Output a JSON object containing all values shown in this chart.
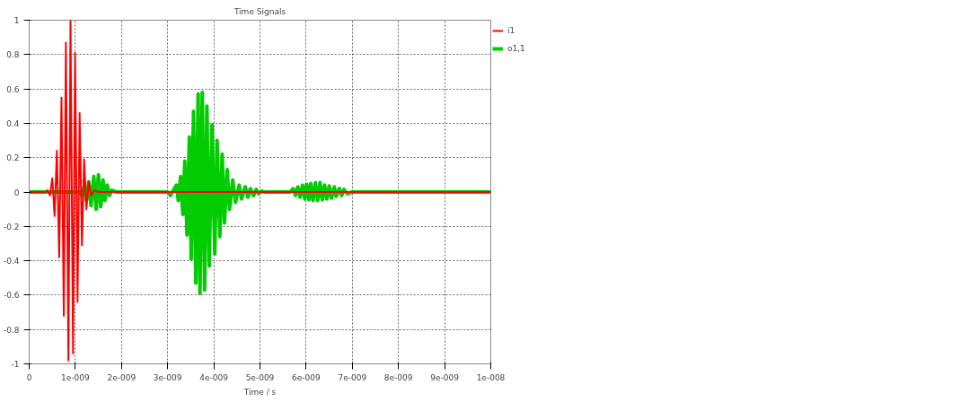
{
  "chart_data": {
    "type": "line",
    "title": "Time Signals",
    "xlabel": "Time / s",
    "xlim": [
      0,
      1e-08
    ],
    "xticks": [
      0,
      {
        "value": 1e-09,
        "label": "1e-009"
      },
      {
        "value": 2e-09,
        "label": "2e-009"
      },
      {
        "value": 3e-09,
        "label": "3e-009"
      },
      {
        "value": 4e-09,
        "label": "4e-009"
      },
      {
        "value": 5e-09,
        "label": "5e-009"
      },
      {
        "value": 6e-09,
        "label": "6e-009"
      },
      {
        "value": 7e-09,
        "label": "7e-009"
      },
      {
        "value": 8e-09,
        "label": "8e-009"
      },
      {
        "value": 9e-09,
        "label": "9e-009"
      },
      {
        "value": 1e-08,
        "label": "1e-008"
      }
    ],
    "ylim": [
      -1,
      1
    ],
    "yticks": [
      -1,
      -0.8,
      -0.6,
      -0.4,
      -0.2,
      0,
      0.2,
      0.4,
      0.6,
      0.8,
      1
    ],
    "grid": true,
    "legend": "top right",
    "line_style": "solid",
    "marker": "none",
    "series": [
      {
        "name": "i1",
        "color": "#ff0000",
        "x": [
          0,
          3.5e-10,
          4e-10,
          4.5e-10,
          5e-10,
          5.5e-10,
          6e-10,
          6.5e-10,
          7e-10,
          7.5e-10,
          7.95e-10,
          8.5e-10,
          8.95e-10,
          9.5e-10,
          9.94e-10,
          1.047e-09,
          1.093e-09,
          1.143e-09,
          1.19e-09,
          1.24e-09,
          1.29e-09,
          1.34e-09,
          1.41e-09,
          1.5e-09,
          1e-08
        ],
        "values": [
          0,
          0,
          0.01,
          -0.02,
          0.08,
          -0.14,
          0.24,
          -0.38,
          0.55,
          -0.72,
          0.87,
          -0.98,
          1.0,
          -0.94,
          0.81,
          -0.64,
          0.46,
          -0.31,
          0.19,
          -0.1,
          0.06,
          -0.02,
          0.01,
          0,
          0
        ]
      },
      {
        "name": "o1,1",
        "color": "#00cc00",
        "x": [
          0,
          1.1e-09,
          1.14e-09,
          1.19e-09,
          1.24e-09,
          1.29e-09,
          1.34e-09,
          1.4e-09,
          1.45e-09,
          1.5e-09,
          1.55e-09,
          1.6e-09,
          1.64e-09,
          1.69e-09,
          1.74e-09,
          1.79e-09,
          1.9e-09,
          3e-09,
          3.06e-09,
          3.19e-09,
          3.23e-09,
          3.28e-09,
          3.33e-09,
          3.37e-09,
          3.42e-09,
          3.47e-09,
          3.51e-09,
          3.56e-09,
          3.61e-09,
          3.66e-09,
          3.7e-09,
          3.75e-09,
          3.8e-09,
          3.85e-09,
          3.9e-09,
          3.96e-09,
          4.02e-09,
          4.07e-09,
          4.13e-09,
          4.18e-09,
          4.23e-09,
          4.29e-09,
          4.34e-09,
          4.41e-09,
          4.47e-09,
          4.55e-09,
          4.6e-09,
          4.68e-09,
          4.74e-09,
          4.79e-09,
          4.86e-09,
          4.92e-09,
          4.97e-09,
          5.03e-09,
          5.1e-09,
          5.65e-09,
          5.72e-09,
          5.77e-09,
          5.82e-09,
          5.87e-09,
          5.92e-09,
          5.97e-09,
          6.01e-09,
          6.06e-09,
          6.1e-09,
          6.15e-09,
          6.2e-09,
          6.25e-09,
          6.3e-09,
          6.35e-09,
          6.4e-09,
          6.45e-09,
          6.5e-09,
          6.55e-09,
          6.61e-09,
          6.65e-09,
          6.72e-09,
          6.77e-09,
          6.82e-09,
          6.89e-09,
          7e-09,
          1e-08
        ],
        "values": [
          0,
          0,
          -0.02,
          0.03,
          -0.05,
          0.06,
          -0.08,
          0.09,
          -0.1,
          0.1,
          -0.085,
          0.07,
          -0.05,
          0.04,
          -0.02,
          0.01,
          0,
          0,
          -0.02,
          0.04,
          -0.05,
          0.09,
          -0.13,
          0.18,
          -0.25,
          0.32,
          -0.39,
          0.47,
          -0.53,
          0.57,
          -0.59,
          0.58,
          -0.57,
          0.5,
          -0.43,
          0.39,
          -0.36,
          0.3,
          -0.26,
          0.22,
          -0.18,
          0.13,
          -0.1,
          0.07,
          -0.06,
          0.04,
          -0.04,
          0.03,
          -0.03,
          0.02,
          -0.02,
          0.015,
          -0.01,
          0.005,
          0,
          0,
          0.02,
          -0.02,
          0.03,
          -0.03,
          0.04,
          -0.04,
          0.045,
          -0.045,
          0.05,
          -0.05,
          0.055,
          -0.05,
          0.055,
          -0.045,
          0.04,
          -0.04,
          0.035,
          -0.035,
          0.03,
          -0.025,
          0.02,
          -0.02,
          0.015,
          -0.01,
          0,
          0
        ]
      }
    ]
  }
}
